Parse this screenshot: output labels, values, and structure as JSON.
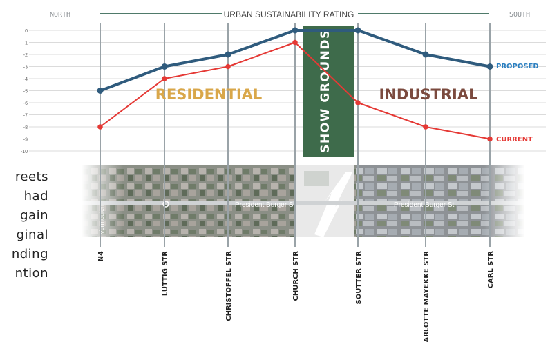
{
  "chart_data": {
    "type": "line",
    "title": "URBAN SUSTAINABILITY RATING",
    "direction_left": "NORTH",
    "direction_right": "SOUTH",
    "categories": [
      "N4",
      "LUTTIG STR",
      "CHRISTOFFEL STR",
      "CHURCH STR",
      "SOUTTER STR",
      "CHARLOTTE MAYEKKE STR",
      "CARL STR"
    ],
    "ylim": [
      -10,
      0
    ],
    "yticks": [
      "0",
      "-1",
      "-2",
      "-3",
      "-4",
      "-5",
      "-6",
      "-7",
      "-8",
      "-9",
      "-10"
    ],
    "grid": true,
    "series": [
      {
        "name": "PROPOSED",
        "color": "#2f5b7d",
        "label_color": "#2b7fc0",
        "values": [
          -5,
          -3,
          -2,
          0,
          0,
          -2,
          -3
        ]
      },
      {
        "name": "CURRENT",
        "color": "#e53935",
        "label_color": "#e53935",
        "values": [
          -8,
          -4,
          -3,
          -1,
          -6,
          -8,
          -9
        ]
      }
    ],
    "zones": {
      "residential": {
        "label": "RESIDENTIAL",
        "color": "#d9a74a"
      },
      "show_grounds": {
        "label": "SHOW GROUNDS",
        "color": "#3e6b4b"
      },
      "industrial": {
        "label": "INDUSTRIAL",
        "color": "#7b4a3e"
      }
    }
  },
  "map": {
    "street_label_main": "President Burger St",
    "street_label_right": "President Burger St",
    "street_label_left": "Vermeulen"
  },
  "side_text": [
    "reets",
    "had",
    "gain",
    "ginal",
    "nding",
    "ntion"
  ],
  "colors": {
    "grid": "#cfcfcf",
    "axis_rule": "#4f7a6a",
    "road_line": "#9aa3a8"
  }
}
